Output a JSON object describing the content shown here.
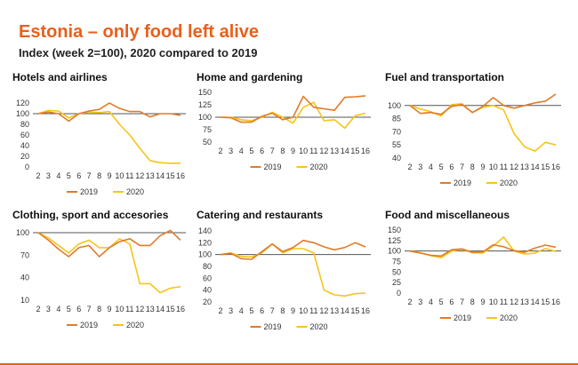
{
  "title": "Estonia – only food left alive",
  "subtitle": "Index (week 2=100), 2020 compared to 2019",
  "colors": {
    "series_2019": "#e07b2a",
    "series_2020": "#f5c518",
    "baseline": "#555555",
    "title": "#e8601c"
  },
  "chart_data": [
    {
      "type": "line",
      "title": "Hotels and airlines",
      "x": [
        2,
        3,
        4,
        5,
        6,
        7,
        8,
        9,
        10,
        11,
        12,
        13,
        14,
        15,
        16
      ],
      "ylim": [
        0,
        120
      ],
      "yticks": [
        0,
        20,
        40,
        60,
        80,
        100,
        120
      ],
      "baseline": 100,
      "legend": "bottom",
      "series": [
        {
          "name": "2019",
          "values": [
            100,
            103,
            100,
            86,
            100,
            105,
            108,
            120,
            110,
            104,
            104,
            94,
            100,
            100,
            97
          ]
        },
        {
          "name": "2020",
          "values": [
            100,
            106,
            105,
            92,
            100,
            103,
            102,
            104,
            80,
            60,
            35,
            12,
            8,
            7,
            7
          ]
        }
      ]
    },
    {
      "type": "line",
      "title": "Home and gardening",
      "x": [
        2,
        3,
        4,
        5,
        6,
        7,
        8,
        9,
        10,
        11,
        12,
        13,
        14,
        15,
        16
      ],
      "ylim": [
        50,
        150
      ],
      "yticks": [
        50,
        75,
        100,
        125,
        150
      ],
      "baseline": 100,
      "legend": "bottom",
      "series": [
        {
          "name": "2019",
          "values": [
            100,
            99,
            90,
            90,
            102,
            108,
            95,
            100,
            142,
            120,
            117,
            114,
            140,
            141,
            143
          ]
        },
        {
          "name": "2020",
          "values": [
            100,
            100,
            95,
            93,
            100,
            110,
            100,
            88,
            120,
            130,
            93,
            95,
            78,
            103,
            108
          ]
        }
      ]
    },
    {
      "type": "line",
      "title": "Fuel and transportation",
      "x": [
        2,
        3,
        4,
        5,
        6,
        7,
        8,
        9,
        10,
        11,
        12,
        13,
        14,
        15,
        16
      ],
      "ylim": [
        40,
        115
      ],
      "yticks": [
        40,
        55,
        70,
        85,
        100
      ],
      "baseline": 100,
      "legend": "bottom",
      "series": [
        {
          "name": "2019",
          "values": [
            100,
            91,
            92,
            90,
            99,
            101,
            92,
            99,
            109,
            100,
            97,
            100,
            103,
            105,
            113
          ]
        },
        {
          "name": "2020",
          "values": [
            100,
            96,
            93,
            88,
            101,
            102,
            92,
            98,
            100,
            95,
            68,
            53,
            48,
            58,
            55
          ]
        }
      ]
    },
    {
      "type": "line",
      "title": "Clothing, sport and accesories",
      "x": [
        2,
        3,
        4,
        5,
        6,
        7,
        8,
        9,
        10,
        11,
        12,
        13,
        14,
        15,
        16
      ],
      "ylim": [
        10,
        100
      ],
      "yticks": [
        10,
        40,
        70,
        100
      ],
      "baseline": 100,
      "legend": "bottom",
      "series": [
        {
          "name": "2019",
          "values": [
            100,
            90,
            78,
            68,
            80,
            83,
            68,
            80,
            88,
            92,
            83,
            83,
            96,
            103,
            90
          ]
        },
        {
          "name": "2020",
          "values": [
            100,
            93,
            83,
            73,
            85,
            90,
            80,
            80,
            92,
            85,
            32,
            32,
            20,
            26,
            28
          ]
        }
      ]
    },
    {
      "type": "line",
      "title": "Catering and restaurants",
      "x": [
        2,
        3,
        4,
        5,
        6,
        7,
        8,
        9,
        10,
        11,
        12,
        13,
        14,
        15,
        16
      ],
      "ylim": [
        20,
        140
      ],
      "yticks": [
        20,
        40,
        60,
        80,
        100,
        120,
        140
      ],
      "baseline": 100,
      "legend": "bottom",
      "series": [
        {
          "name": "2019",
          "values": [
            100,
            102,
            93,
            92,
            105,
            118,
            105,
            112,
            124,
            120,
            113,
            108,
            112,
            120,
            113
          ]
        },
        {
          "name": "2020",
          "values": [
            100,
            103,
            97,
            96,
            103,
            118,
            103,
            110,
            110,
            103,
            40,
            32,
            30,
            34,
            35
          ]
        }
      ]
    },
    {
      "type": "line",
      "title": "Food and miscellaneous",
      "x": [
        2,
        3,
        4,
        5,
        6,
        7,
        8,
        9,
        10,
        11,
        12,
        13,
        14,
        15,
        16
      ],
      "ylim": [
        0,
        150
      ],
      "yticks": [
        0,
        25,
        50,
        75,
        100,
        125,
        150
      ],
      "baseline": 100,
      "legend": "bottom",
      "series": [
        {
          "name": "2019",
          "values": [
            100,
            95,
            90,
            88,
            103,
            105,
            97,
            98,
            115,
            110,
            101,
            97,
            107,
            114,
            109
          ]
        },
        {
          "name": "2020",
          "values": [
            100,
            96,
            89,
            84,
            100,
            104,
            96,
            95,
            112,
            133,
            100,
            93,
            95,
            106,
            99
          ]
        }
      ]
    }
  ]
}
